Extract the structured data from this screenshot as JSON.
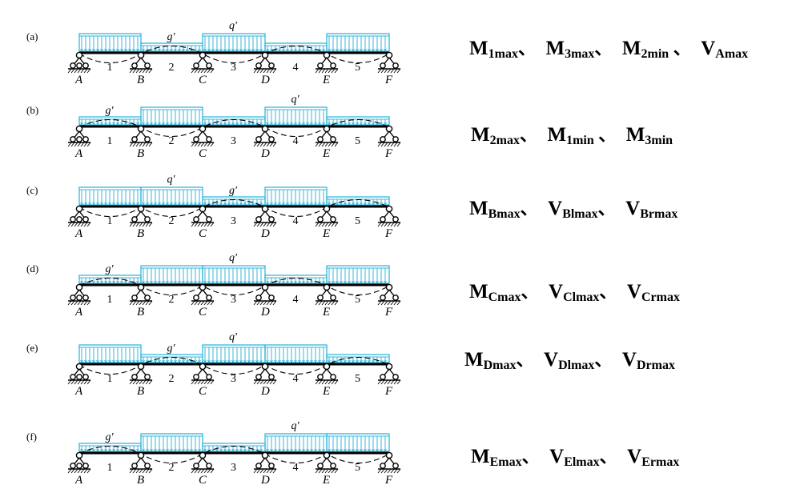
{
  "supports": [
    "A",
    "B",
    "C",
    "D",
    "E",
    "F"
  ],
  "span_numbers": [
    "1",
    "2",
    "3",
    "4",
    "5"
  ],
  "panels": [
    {
      "label": "(a)",
      "q_spans": [
        0,
        2,
        4
      ],
      "deflection_up": [
        false,
        true,
        false,
        true,
        false
      ],
      "g_label": "g′",
      "q_label": "q′",
      "formula": [
        {
          "base": "M",
          "sub": "1max",
          "sep": "、"
        },
        {
          "base": "M",
          "sub": "3max",
          "sep": "、"
        },
        {
          "base": "M",
          "sub": "2min",
          "sep": " 、"
        },
        {
          "base": "V",
          "sub": "Amax",
          "sep": ""
        }
      ]
    },
    {
      "label": "(b)",
      "q_spans": [
        1,
        3
      ],
      "deflection_up": [
        true,
        false,
        true,
        false,
        true
      ],
      "g_label": "g′",
      "q_label": "q′",
      "formula": [
        {
          "base": "M",
          "sub": "2max",
          "sep": "、"
        },
        {
          "base": "M",
          "sub": "1min",
          "sep": " 、"
        },
        {
          "base": "M",
          "sub": "3min",
          "sep": ""
        }
      ]
    },
    {
      "label": "(c)",
      "q_spans": [
        0,
        1,
        3
      ],
      "deflection_up": [
        false,
        false,
        true,
        false,
        true
      ],
      "g_label": "g′",
      "q_label": "q′",
      "formula": [
        {
          "base": "M",
          "sub": "Bmax",
          "sep": "、"
        },
        {
          "base": "V",
          "sub": "Blmax",
          "sep": "、"
        },
        {
          "base": "V",
          "sub": "Brmax",
          "sep": ""
        }
      ]
    },
    {
      "label": "(d)",
      "q_spans": [
        1,
        2,
        4
      ],
      "deflection_up": [
        true,
        false,
        false,
        true,
        false
      ],
      "g_label": "g′",
      "q_label": "q′",
      "formula": [
        {
          "base": "M",
          "sub": "Cmax",
          "sep": "、"
        },
        {
          "base": "V",
          "sub": "Clmax",
          "sep": "、"
        },
        {
          "base": "V",
          "sub": "Crmax",
          "sep": ""
        }
      ]
    },
    {
      "label": "(e)",
      "q_spans": [
        0,
        2,
        3
      ],
      "deflection_up": [
        false,
        true,
        false,
        false,
        true
      ],
      "g_label": "g′",
      "q_label": "q′",
      "formula": [
        {
          "base": "M",
          "sub": "Dmax",
          "sep": "、"
        },
        {
          "base": "V",
          "sub": "Dlmax",
          "sep": "、"
        },
        {
          "base": "V",
          "sub": "Drmax",
          "sep": ""
        }
      ]
    },
    {
      "label": "(f)",
      "q_spans": [
        1,
        3,
        4
      ],
      "deflection_up": [
        true,
        false,
        true,
        false,
        false
      ],
      "g_label": "g′",
      "q_label": "q′",
      "formula": [
        {
          "base": "M",
          "sub": "Emax",
          "sep": "、"
        },
        {
          "base": "V",
          "sub": "Elmax",
          "sep": "、"
        },
        {
          "base": "V",
          "sub": "Ermax",
          "sep": ""
        }
      ]
    }
  ]
}
